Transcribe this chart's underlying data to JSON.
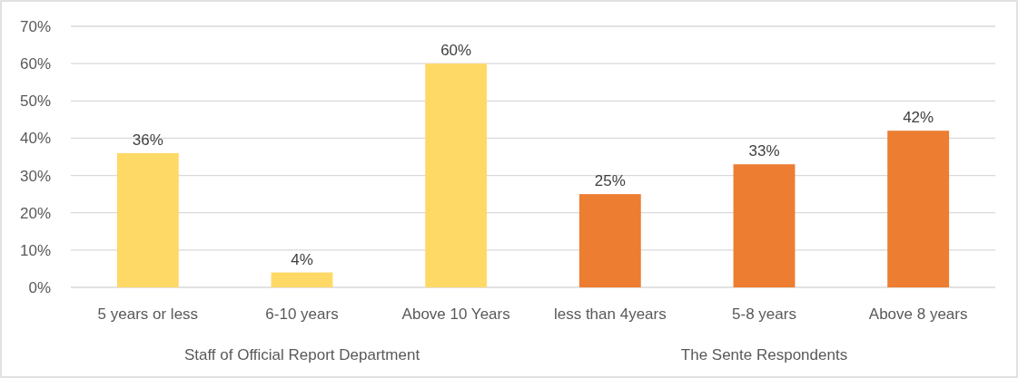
{
  "chart_data": {
    "type": "bar",
    "categories": [
      "5 years or less",
      "6-10 years",
      "Above 10 Years",
      "less than 4years",
      "5-8 years",
      "Above 8 years"
    ],
    "values": [
      36,
      4,
      60,
      25,
      33,
      42
    ],
    "colors": [
      "#ffd966",
      "#ffd966",
      "#ffd966",
      "#ed7d31",
      "#ed7d31",
      "#ed7d31"
    ],
    "value_labels": [
      "36%",
      "4%",
      "60%",
      "25%",
      "33%",
      "42%"
    ],
    "ylim": [
      0,
      70
    ],
    "yticks": [
      {
        "value": 0,
        "label": "0%"
      },
      {
        "value": 10,
        "label": "10%"
      },
      {
        "value": 20,
        "label": "20%"
      },
      {
        "value": 30,
        "label": "30%"
      },
      {
        "value": 40,
        "label": "40%"
      },
      {
        "value": 50,
        "label": "50%"
      },
      {
        "value": 60,
        "label": "60%"
      },
      {
        "value": 70,
        "label": "70%"
      }
    ],
    "grid": "y",
    "annotations": [
      "Staff of Official Report Department",
      "The Sente Respondents"
    ]
  }
}
